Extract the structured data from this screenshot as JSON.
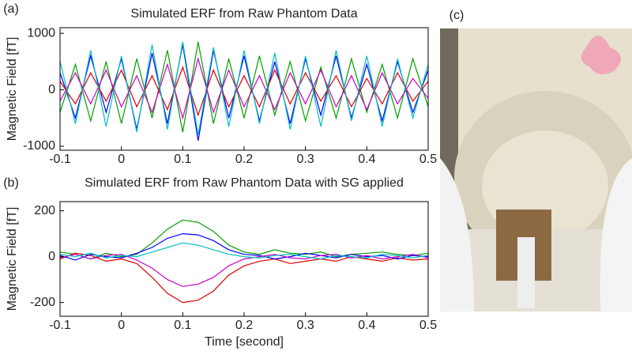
{
  "chart_data": [
    {
      "type": "line",
      "panel_label": "(a)",
      "title": "Simulated ERF from Raw Phantom Data",
      "ylabel": "Magnetic Field [fT]",
      "x": [
        -0.1,
        -0.075,
        -0.05,
        -0.025,
        0,
        0.025,
        0.05,
        0.075,
        0.1,
        0.125,
        0.15,
        0.175,
        0.2,
        0.225,
        0.25,
        0.275,
        0.3,
        0.325,
        0.35,
        0.375,
        0.4,
        0.425,
        0.45,
        0.475,
        0.5
      ],
      "xlim": [
        -0.1,
        0.5
      ],
      "xticks": [
        -0.1,
        0,
        0.1,
        0.2,
        0.3,
        0.4,
        0.5
      ],
      "ylim": [
        -1070,
        1100
      ],
      "yticks": [
        -1000,
        0,
        1000
      ],
      "series": [
        {
          "color": "#0000ff",
          "values": [
            300,
            -500,
            600,
            -400,
            550,
            -700,
            650,
            -600,
            800,
            -900,
            700,
            -500,
            600,
            -550,
            500,
            -600,
            550,
            -450,
            600,
            -500,
            450,
            -550,
            500,
            -400,
            350
          ]
        },
        {
          "color": "#00a000",
          "values": [
            -400,
            450,
            -550,
            500,
            -600,
            550,
            -500,
            700,
            -750,
            850,
            -600,
            550,
            -500,
            600,
            -450,
            500,
            -550,
            400,
            -500,
            550,
            -400,
            450,
            -500,
            550,
            -300
          ]
        },
        {
          "color": "#e00000",
          "values": [
            150,
            -250,
            300,
            -200,
            350,
            -300,
            250,
            -350,
            400,
            -450,
            350,
            -300,
            250,
            -300,
            350,
            -250,
            300,
            -200,
            250,
            -300,
            200,
            -250,
            300,
            -200,
            150
          ]
        },
        {
          "color": "#cc00cc",
          "values": [
            -200,
            300,
            -250,
            350,
            -300,
            250,
            -400,
            450,
            -500,
            550,
            -400,
            350,
            -300,
            250,
            -350,
            300,
            -250,
            350,
            -300,
            250,
            -350,
            300,
            -250,
            200,
            -150
          ]
        },
        {
          "color": "#00bfbf",
          "values": [
            500,
            -600,
            700,
            -650,
            600,
            -750,
            800,
            -700,
            850,
            -800,
            750,
            -650,
            700,
            -600,
            650,
            -700,
            600,
            -650,
            700,
            -550,
            600,
            -650,
            550,
            -500,
            450
          ]
        }
      ]
    },
    {
      "type": "line",
      "panel_label": "(b)",
      "title": "Simulated ERF from Raw Phantom Data with SG applied",
      "ylabel": "Magnetic Field [fT]",
      "xlabel": "Time [second]",
      "x": [
        -0.1,
        -0.075,
        -0.05,
        -0.025,
        0,
        0.025,
        0.05,
        0.075,
        0.1,
        0.125,
        0.15,
        0.175,
        0.2,
        0.225,
        0.25,
        0.275,
        0.3,
        0.325,
        0.35,
        0.375,
        0.4,
        0.425,
        0.45,
        0.475,
        0.5
      ],
      "xlim": [
        -0.1,
        0.5
      ],
      "xticks": [
        -0.1,
        0,
        0.1,
        0.2,
        0.3,
        0.4,
        0.5
      ],
      "ylim": [
        -260,
        240
      ],
      "yticks": [
        -200,
        0,
        200
      ],
      "series": [
        {
          "color": "#00a000",
          "values": [
            20,
            10,
            -10,
            15,
            0,
            10,
            60,
            120,
            160,
            150,
            110,
            50,
            20,
            10,
            30,
            15,
            10,
            20,
            0,
            10,
            15,
            20,
            10,
            5,
            15
          ]
        },
        {
          "color": "#e00000",
          "values": [
            -10,
            15,
            5,
            -20,
            -10,
            -30,
            -90,
            -160,
            -200,
            -190,
            -150,
            -80,
            -40,
            -20,
            -10,
            -30,
            -20,
            -10,
            -20,
            0,
            -10,
            -20,
            -5,
            -15,
            -10
          ]
        },
        {
          "color": "#0000ff",
          "values": [
            5,
            -15,
            10,
            0,
            -5,
            15,
            40,
            80,
            100,
            95,
            70,
            30,
            10,
            5,
            -10,
            0,
            15,
            5,
            -5,
            10,
            0,
            5,
            -10,
            5,
            0
          ]
        },
        {
          "color": "#cc00cc",
          "values": [
            -5,
            10,
            -10,
            5,
            10,
            -15,
            -50,
            -100,
            -130,
            -120,
            -90,
            -40,
            -10,
            0,
            10,
            -5,
            -10,
            5,
            10,
            -5,
            5,
            -10,
            0,
            10,
            -5
          ]
        },
        {
          "color": "#00bfbf",
          "values": [
            10,
            0,
            15,
            -5,
            5,
            0,
            20,
            40,
            60,
            50,
            30,
            10,
            0,
            -5,
            5,
            10,
            0,
            -10,
            5,
            0,
            -5,
            10,
            5,
            -5,
            5
          ]
        }
      ]
    }
  ],
  "photo": {
    "label": "(c)"
  }
}
